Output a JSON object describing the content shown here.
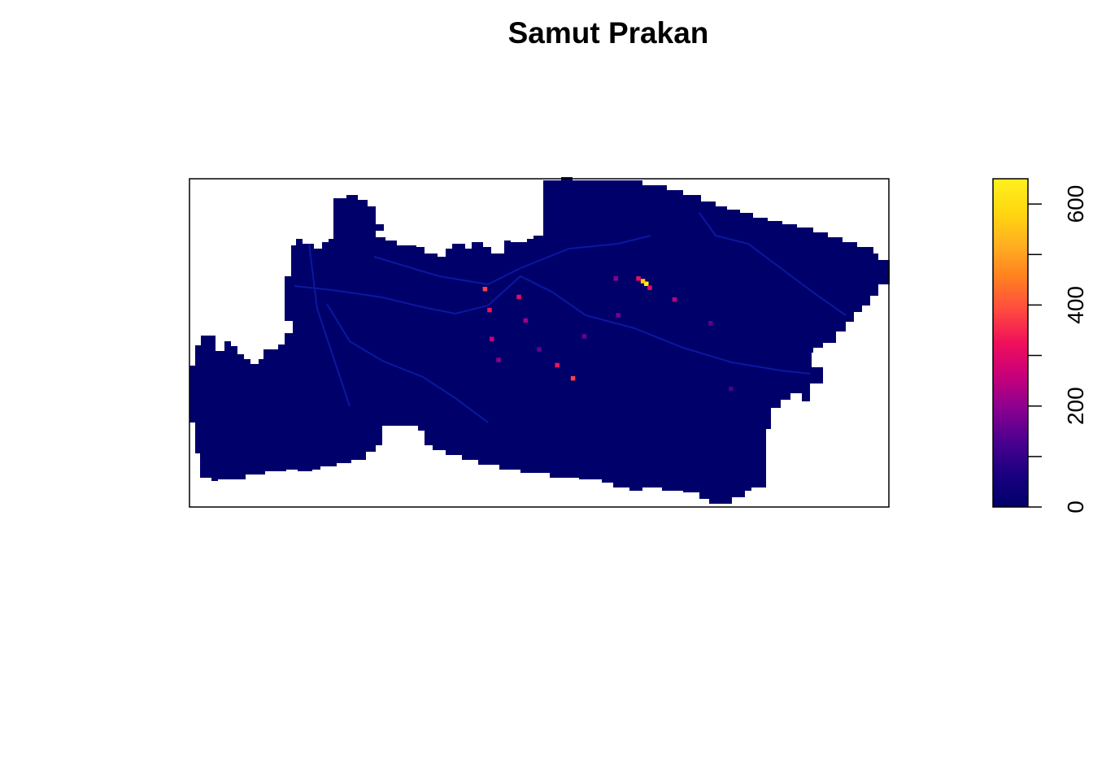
{
  "title": "Samut Prakan",
  "chart_data": {
    "type": "heatmap",
    "title": "Samut Prakan",
    "xlabel": "",
    "ylabel": "",
    "legend_position": "right",
    "colorbar": {
      "range": [
        0,
        650
      ],
      "ticks": [
        0,
        100,
        200,
        300,
        400,
        500,
        600
      ],
      "tick_labels": [
        "0",
        "200",
        "400",
        "600"
      ],
      "palette": [
        "#00006A",
        "#1A0080",
        "#4B0090",
        "#8A0090",
        "#C8007A",
        "#F0105A",
        "#FF4A40",
        "#FF8020",
        "#FFB020",
        "#FFD810",
        "#FFF020"
      ]
    },
    "background_value": 10,
    "hotspots": [
      {
        "lon": 100.755,
        "lat": 13.64,
        "value": 690
      },
      {
        "lon": 100.752,
        "lat": 13.642,
        "value": 560
      },
      {
        "lon": 100.748,
        "lat": 13.644,
        "value": 320
      },
      {
        "lon": 100.758,
        "lat": 13.637,
        "value": 300
      },
      {
        "lon": 100.78,
        "lat": 13.628,
        "value": 250
      },
      {
        "lon": 100.612,
        "lat": 13.636,
        "value": 380
      },
      {
        "lon": 100.616,
        "lat": 13.62,
        "value": 330
      },
      {
        "lon": 100.69,
        "lat": 13.568,
        "value": 380
      },
      {
        "lon": 100.676,
        "lat": 13.578,
        "value": 330
      },
      {
        "lon": 100.642,
        "lat": 13.63,
        "value": 300
      },
      {
        "lon": 100.648,
        "lat": 13.612,
        "value": 220
      },
      {
        "lon": 100.618,
        "lat": 13.598,
        "value": 260
      },
      {
        "lon": 100.624,
        "lat": 13.582,
        "value": 200
      },
      {
        "lon": 100.728,
        "lat": 13.644,
        "value": 200
      },
      {
        "lon": 100.73,
        "lat": 13.616,
        "value": 180
      },
      {
        "lon": 100.7,
        "lat": 13.6,
        "value": 160
      },
      {
        "lon": 100.66,
        "lat": 13.59,
        "value": 160
      },
      {
        "lon": 100.812,
        "lat": 13.61,
        "value": 150
      },
      {
        "lon": 100.83,
        "lat": 13.56,
        "value": 130
      }
    ]
  }
}
